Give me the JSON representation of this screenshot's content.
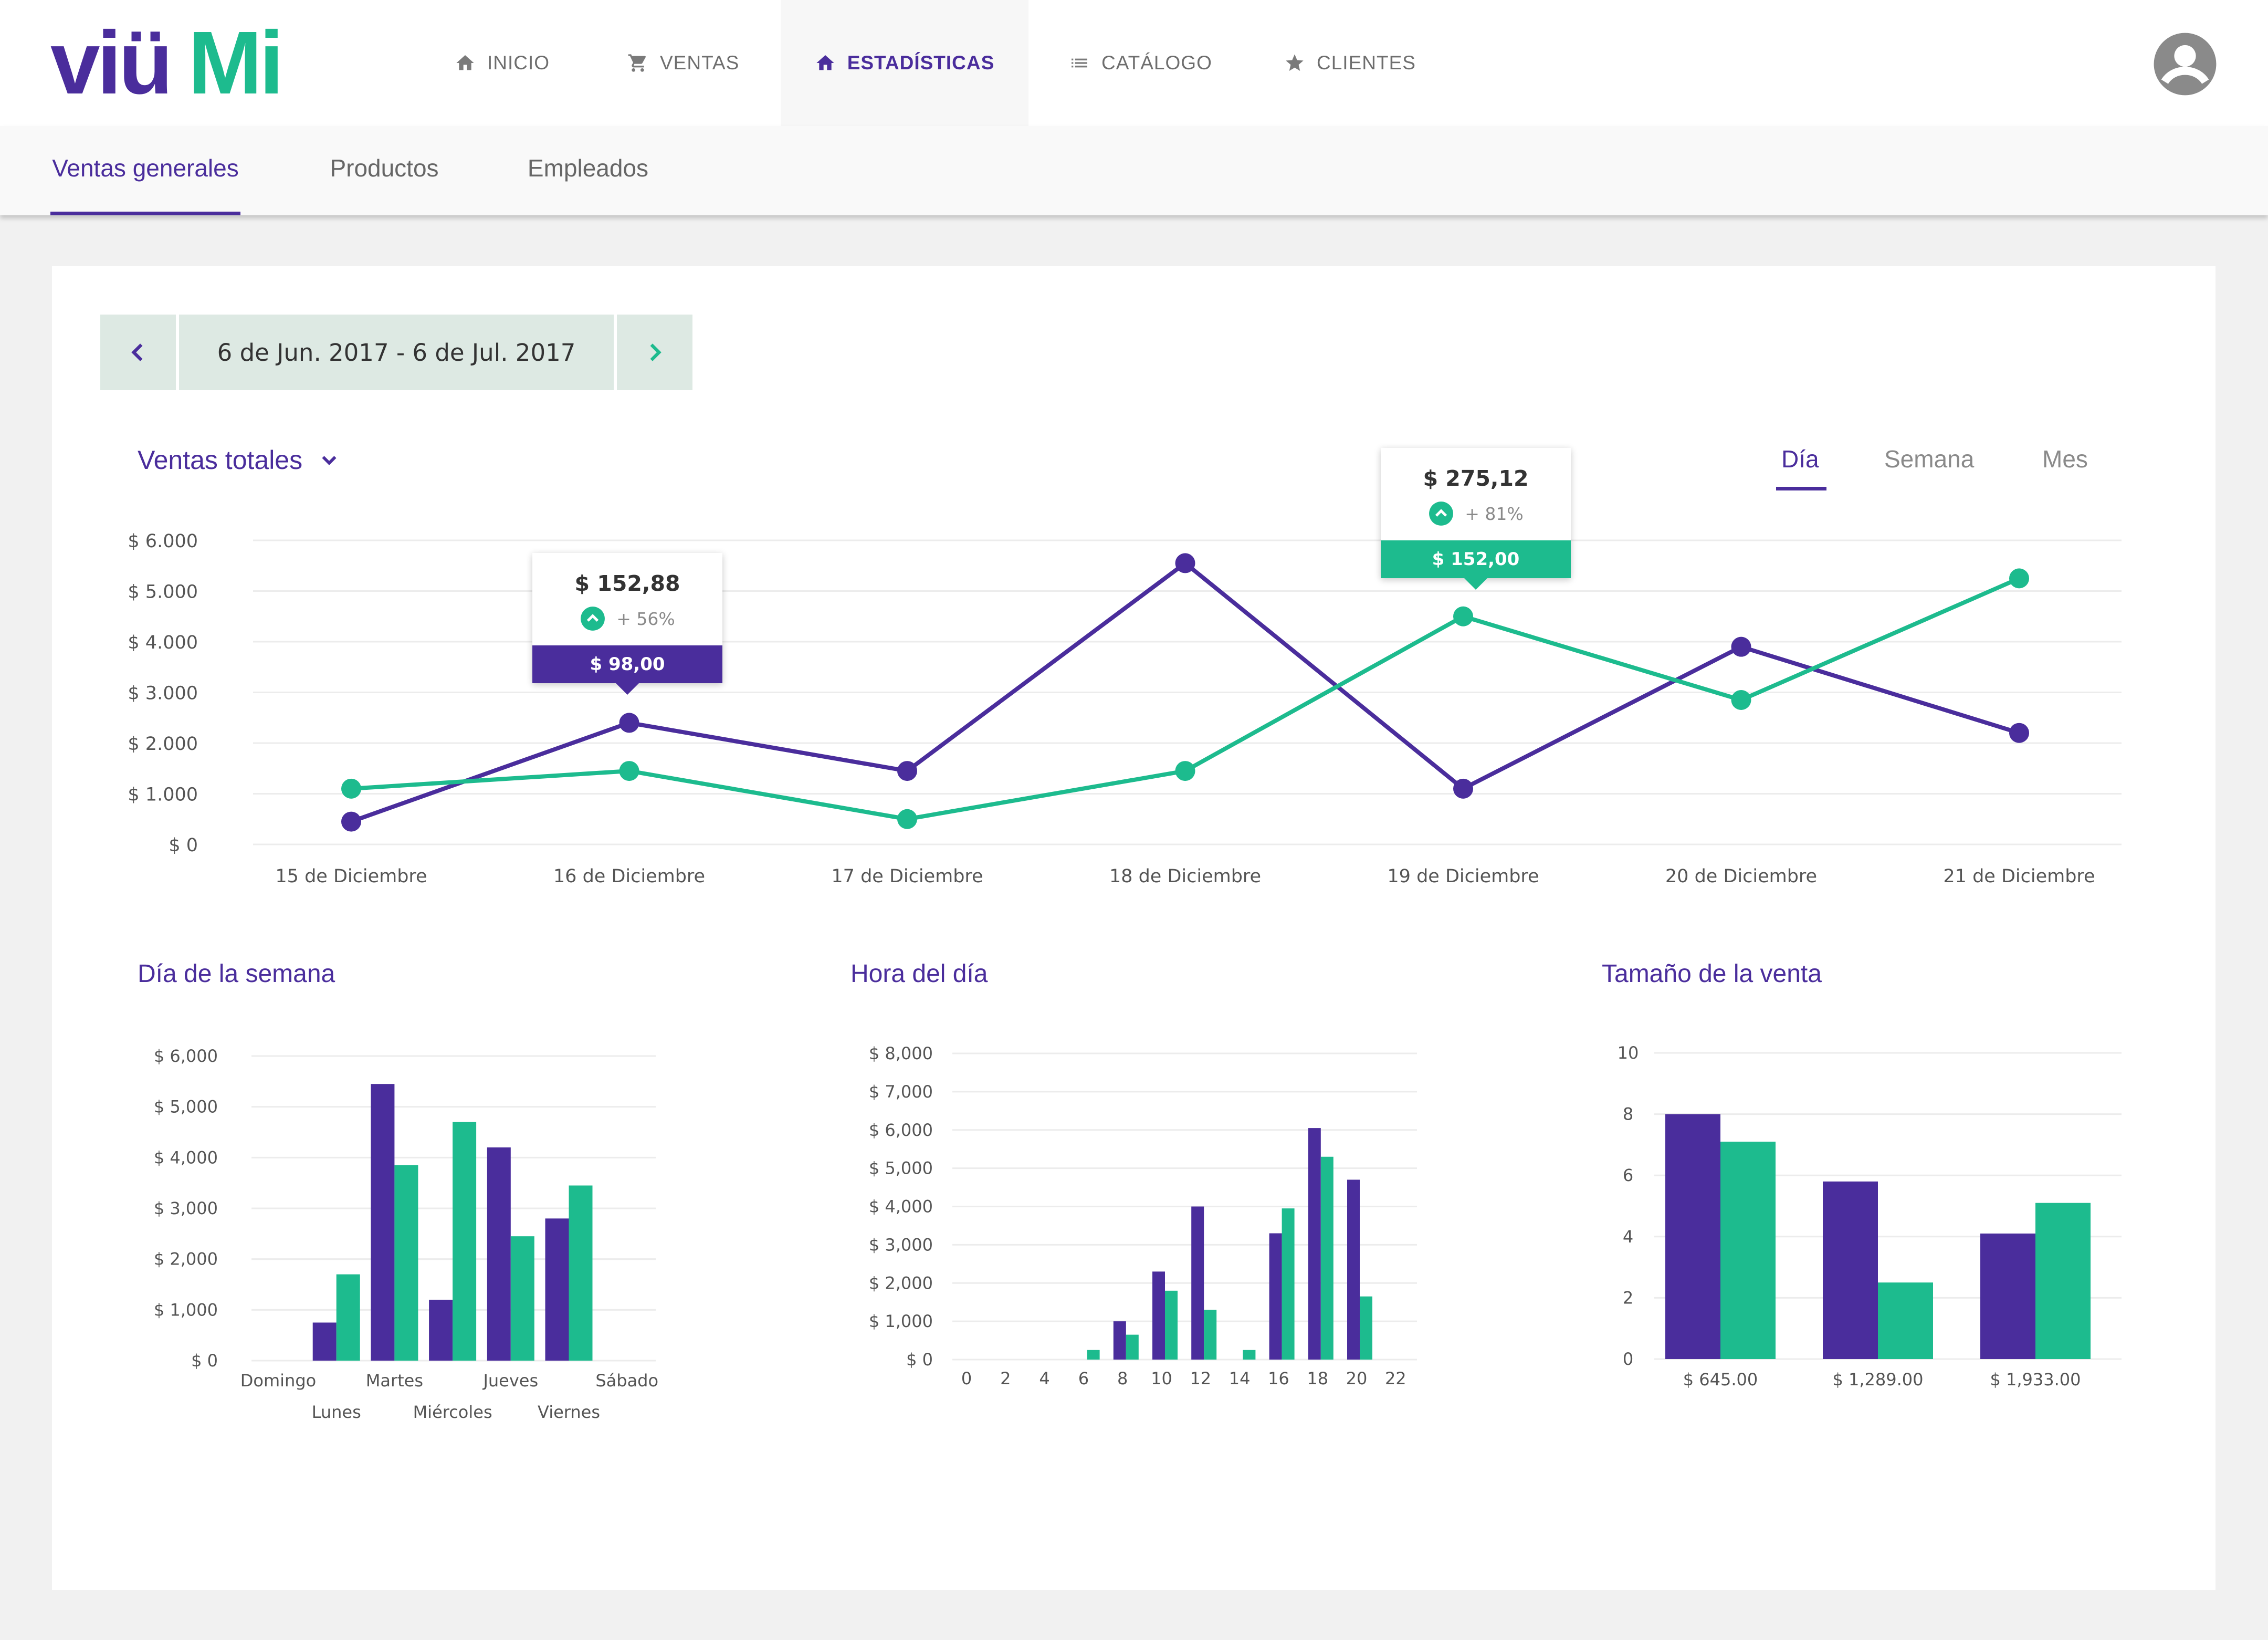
{
  "brand": {
    "name": "viüMi",
    "primary": "#4a2d9c",
    "secondary": "#1dbb8e"
  },
  "nav": {
    "items": [
      {
        "label": "INICIO",
        "icon": "home-icon"
      },
      {
        "label": "VENTAS",
        "icon": "cart-icon"
      },
      {
        "label": "ESTADÍSTICAS",
        "icon": "home-icon",
        "active": true
      },
      {
        "label": "CATÁLOGO",
        "icon": "list-icon"
      },
      {
        "label": "CLIENTES",
        "icon": "star-icon"
      }
    ],
    "avatar_icon": "user-avatar-icon"
  },
  "subnav": {
    "tabs": [
      {
        "label": "Ventas generales",
        "active": true
      },
      {
        "label": "Productos"
      },
      {
        "label": "Empleados"
      }
    ]
  },
  "date_range": {
    "label": "6 de Jun. 2017 - 6 de Jul. 2017",
    "prev_icon": "chevron-left-icon",
    "next_icon": "chevron-right-icon"
  },
  "metric": {
    "label": "Ventas totales",
    "icon": "chevron-down-icon"
  },
  "periods": [
    {
      "label": "Día",
      "active": true
    },
    {
      "label": "Semana"
    },
    {
      "label": "Mes"
    }
  ],
  "tooltips": [
    {
      "value": "$ 152,88",
      "change": "+ 56%",
      "base": "$ 98,00",
      "color": "#4a2d9c"
    },
    {
      "value": "$ 275,12",
      "change": "+ 81%",
      "base": "$ 152,00",
      "color": "#1dbb8e"
    }
  ],
  "chart_data": [
    {
      "type": "line",
      "categories": [
        "15 de Diciembre",
        "16 de Diciembre",
        "17 de Diciembre",
        "18 de Diciembre",
        "19 de Diciembre",
        "20 de Diciembre",
        "21 de Diciembre"
      ],
      "series": [
        {
          "values": [
            450,
            2400,
            1450,
            5550,
            1100,
            3900,
            2200
          ],
          "color": "#4a2d9c"
        },
        {
          "values": [
            1100,
            1450,
            500,
            1450,
            4500,
            2850,
            5250
          ],
          "color": "#1dbb8e"
        }
      ],
      "ylim": [
        0,
        6000
      ],
      "yticks": [
        "$ 0",
        "$ 1.000",
        "$ 2.000",
        "$ 3.000",
        "$ 4.000",
        "$ 5.000",
        "$ 6.000"
      ],
      "grid": true
    },
    {
      "type": "bar",
      "title": "Día de la semana",
      "categories": [
        "Domingo",
        "Lunes",
        "Martes",
        "Miércoles",
        "Jueves",
        "Viernes",
        "Sábado"
      ],
      "series": [
        {
          "values": [
            0,
            750,
            5450,
            1200,
            4200,
            2800,
            0
          ],
          "color": "#4a2d9c"
        },
        {
          "values": [
            0,
            1700,
            3850,
            4700,
            2450,
            3450,
            0
          ],
          "color": "#1dbb8e"
        }
      ],
      "ylim": [
        0,
        6000
      ],
      "yticks": [
        "$ 0",
        "$ 1,000",
        "$ 2,000",
        "$ 3,000",
        "$ 4,000",
        "$ 5,000",
        "$ 6,000"
      ]
    },
    {
      "type": "bar",
      "title": "Hora del día",
      "categories": [
        "6",
        "8",
        "10",
        "12",
        "14",
        "16",
        "18",
        "20"
      ],
      "xticks": [
        "0",
        "2",
        "4",
        "6",
        "8",
        "10",
        "12",
        "14",
        "16",
        "18",
        "20",
        "22"
      ],
      "series": [
        {
          "values": [
            0,
            1000,
            2300,
            4000,
            0,
            3300,
            6050,
            4700
          ],
          "color": "#4a2d9c"
        },
        {
          "values": [
            250,
            650,
            1800,
            1300,
            250,
            3950,
            5300,
            1650
          ],
          "color": "#1dbb8e"
        }
      ],
      "ylim": [
        0,
        8000
      ],
      "yticks": [
        "$ 0",
        "$ 1,000",
        "$ 2,000",
        "$ 3,000",
        "$ 4,000",
        "$ 5,000",
        "$ 6,000",
        "$ 7,000",
        "$ 8,000"
      ]
    },
    {
      "type": "bar",
      "title": "Tamaño de la venta",
      "categories": [
        "$ 645.00",
        "$ 1,289.00",
        "$ 1,933.00"
      ],
      "series": [
        {
          "values": [
            8,
            5.8,
            4.1
          ],
          "color": "#4a2d9c"
        },
        {
          "values": [
            7.1,
            2.5,
            5.1
          ],
          "color": "#1dbb8e"
        }
      ],
      "ylim": [
        0,
        10
      ],
      "yticks": [
        "0",
        "2",
        "4",
        "6",
        "8",
        "10"
      ]
    }
  ]
}
